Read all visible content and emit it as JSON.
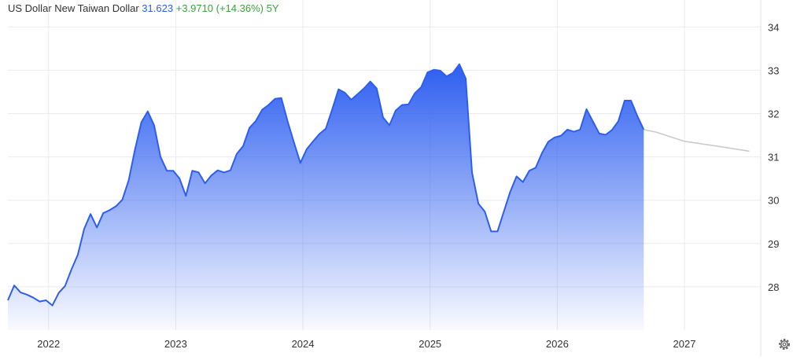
{
  "chart_data": {
    "type": "line",
    "title": "US Dollar New Taiwan Dollar",
    "price": "31.623",
    "change": "+3.9710 (+14.36%)",
    "period": "5Y",
    "xlim": [
      2021.68,
      2027.6
    ],
    "xticks": [
      2022,
      2023,
      2024,
      2025,
      2026,
      2027
    ],
    "ylim": [
      27.0,
      34.35
    ],
    "yticks": [
      28,
      29,
      30,
      31,
      32,
      33,
      34
    ],
    "grid": true,
    "series": [
      {
        "color": "#2d5ef0",
        "style": "area",
        "x": [
          2021.68,
          2021.73,
          2021.78,
          2021.83,
          2021.88,
          2021.93,
          2021.98,
          2022.03,
          2022.08,
          2022.13,
          2022.18,
          2022.23,
          2022.28,
          2022.33,
          2022.38,
          2022.43,
          2022.48,
          2022.53,
          2022.58,
          2022.63,
          2022.68,
          2022.73,
          2022.78,
          2022.83,
          2022.88,
          2022.93,
          2022.98,
          2023.03,
          2023.08,
          2023.13,
          2023.18,
          2023.23,
          2023.28,
          2023.33,
          2023.38,
          2023.43,
          2023.48,
          2023.53,
          2023.58,
          2023.63,
          2023.68,
          2023.73,
          2023.78,
          2023.83,
          2023.88,
          2023.93,
          2023.98,
          2024.03,
          2024.08,
          2024.13,
          2024.18,
          2024.23,
          2024.28,
          2024.33,
          2024.38,
          2024.43,
          2024.48,
          2024.53,
          2024.58,
          2024.63,
          2024.68,
          2024.73,
          2024.78,
          2024.83,
          2024.88,
          2024.93,
          2024.98,
          2025.03,
          2025.08,
          2025.13,
          2025.18,
          2025.23,
          2025.28,
          2025.33,
          2025.38,
          2025.43,
          2025.48,
          2025.53,
          2025.58,
          2025.63,
          2025.68,
          2025.73,
          2025.78,
          2025.83,
          2025.88,
          2025.93,
          2025.98,
          2026.03,
          2026.08,
          2026.13,
          2026.18,
          2026.23,
          2026.28,
          2026.33,
          2026.38,
          2026.43,
          2026.48,
          2026.53,
          2026.58,
          2026.63,
          2026.68
        ],
        "values": [
          27.69,
          28.03,
          27.87,
          27.82,
          27.75,
          27.66,
          27.69,
          27.57,
          27.86,
          28.02,
          28.4,
          28.74,
          29.34,
          29.68,
          29.37,
          29.7,
          29.77,
          29.86,
          30.01,
          30.46,
          31.18,
          31.8,
          32.05,
          31.73,
          31.0,
          30.68,
          30.68,
          30.5,
          30.1,
          30.68,
          30.64,
          30.39,
          30.57,
          30.69,
          30.64,
          30.69,
          31.07,
          31.25,
          31.67,
          31.83,
          32.09,
          32.2,
          32.34,
          32.36,
          31.82,
          31.33,
          30.86,
          31.18,
          31.36,
          31.53,
          31.65,
          32.09,
          32.56,
          32.48,
          32.32,
          32.45,
          32.58,
          32.74,
          32.58,
          31.91,
          31.73,
          32.07,
          32.2,
          32.21,
          32.47,
          32.61,
          32.95,
          33.01,
          32.99,
          32.86,
          32.94,
          33.14,
          32.81,
          30.64,
          29.92,
          29.74,
          29.28,
          29.28,
          29.74,
          30.19,
          30.55,
          30.42,
          30.68,
          30.75,
          31.09,
          31.35,
          31.45,
          31.49,
          31.63,
          31.58,
          31.63,
          32.1,
          31.82,
          31.54,
          31.51,
          31.62,
          31.82,
          32.3,
          32.3,
          31.94,
          31.63
        ]
      },
      {
        "color": "#c8c8c8",
        "style": "line",
        "x": [
          2026.68,
          2026.78,
          2027.0,
          2027.25,
          2027.51
        ],
        "values": [
          31.63,
          31.57,
          31.36,
          31.25,
          31.13
        ]
      }
    ]
  }
}
